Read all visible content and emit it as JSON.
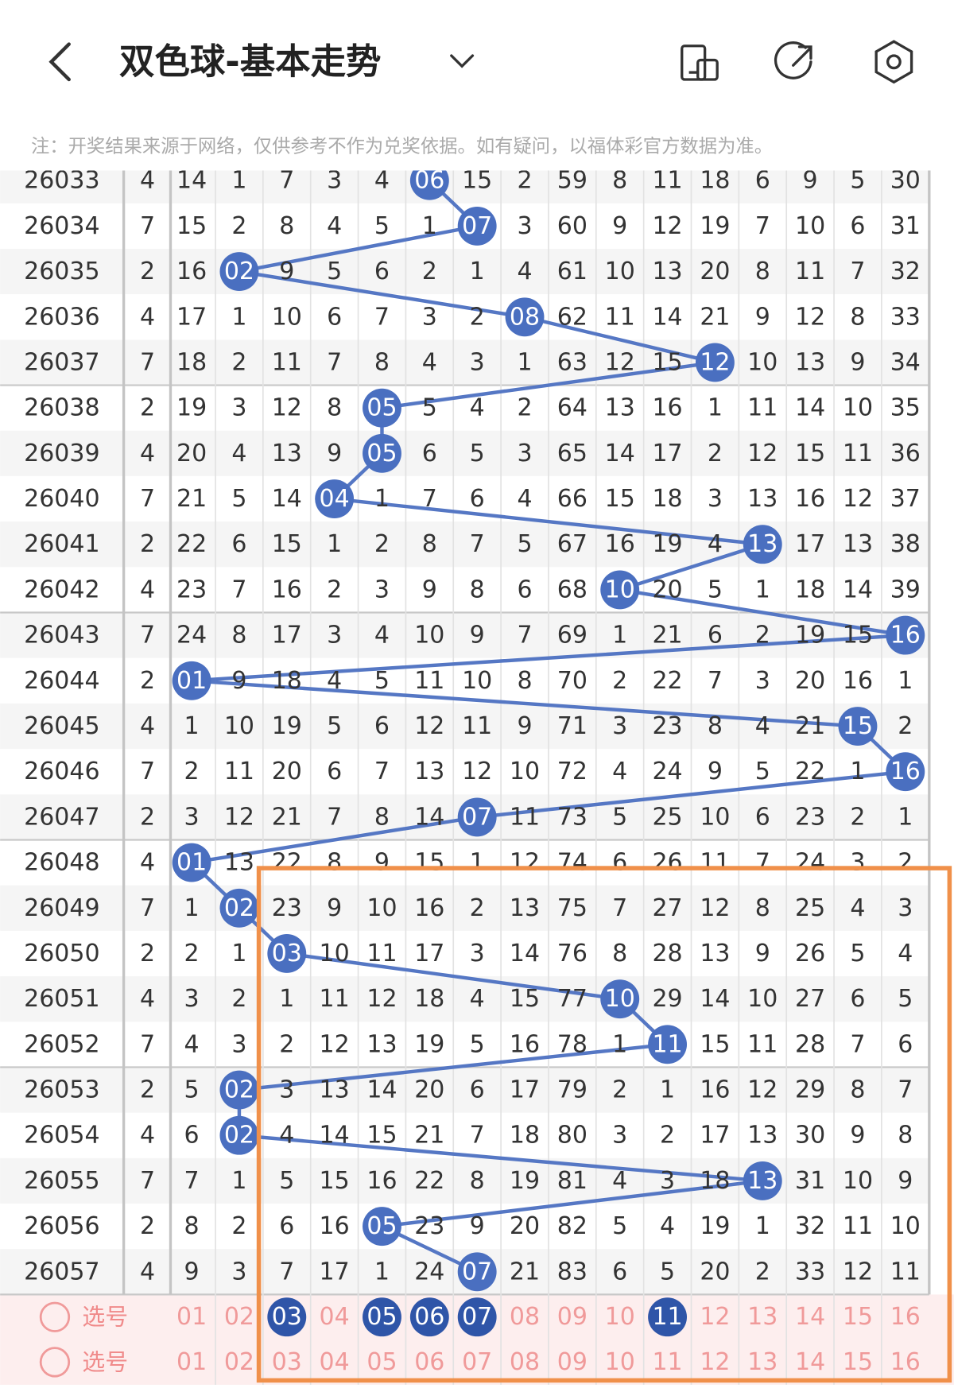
{
  "header": {
    "title": "双色球-基本走势",
    "note": "注：开奖结果来源于网络，仅供参考不作为兑奖依据。如有疑问，以福体彩官方数据为准。"
  },
  "table": {
    "rows": [
      {
        "issue": "26033",
        "span": 4,
        "cells": [
          14,
          1,
          7,
          3,
          4,
          "06",
          15,
          2,
          59,
          8,
          11,
          18,
          6,
          9,
          5,
          30
        ]
      },
      {
        "issue": "26034",
        "span": 7,
        "cells": [
          15,
          2,
          8,
          4,
          5,
          1,
          "07",
          3,
          60,
          9,
          12,
          19,
          7,
          10,
          6,
          31
        ]
      },
      {
        "issue": "26035",
        "span": 2,
        "cells": [
          16,
          "02",
          9,
          5,
          6,
          2,
          1,
          4,
          61,
          10,
          13,
          20,
          8,
          11,
          7,
          32
        ]
      },
      {
        "issue": "26036",
        "span": 4,
        "cells": [
          17,
          1,
          10,
          6,
          7,
          3,
          2,
          "08",
          62,
          11,
          14,
          21,
          9,
          12,
          8,
          33
        ]
      },
      {
        "issue": "26037",
        "span": 7,
        "cells": [
          18,
          2,
          11,
          7,
          8,
          4,
          3,
          1,
          63,
          12,
          15,
          "12",
          10,
          13,
          9,
          34
        ]
      },
      {
        "issue": "26038",
        "span": 2,
        "cells": [
          19,
          3,
          12,
          8,
          "05",
          5,
          4,
          2,
          64,
          13,
          16,
          1,
          11,
          14,
          10,
          35
        ]
      },
      {
        "issue": "26039",
        "span": 4,
        "cells": [
          20,
          4,
          13,
          9,
          "05",
          6,
          5,
          3,
          65,
          14,
          17,
          2,
          12,
          15,
          11,
          36
        ]
      },
      {
        "issue": "26040",
        "span": 7,
        "cells": [
          21,
          5,
          14,
          "04",
          1,
          7,
          6,
          4,
          66,
          15,
          18,
          3,
          13,
          16,
          12,
          37
        ]
      },
      {
        "issue": "26041",
        "span": 2,
        "cells": [
          22,
          6,
          15,
          1,
          2,
          8,
          7,
          5,
          67,
          16,
          19,
          4,
          "13",
          17,
          13,
          38
        ]
      },
      {
        "issue": "26042",
        "span": 4,
        "cells": [
          23,
          7,
          16,
          2,
          3,
          9,
          8,
          6,
          68,
          "10",
          20,
          5,
          1,
          18,
          14,
          39
        ]
      },
      {
        "issue": "26043",
        "span": 7,
        "cells": [
          24,
          8,
          17,
          3,
          4,
          10,
          9,
          7,
          69,
          1,
          21,
          6,
          2,
          19,
          15,
          "16"
        ]
      },
      {
        "issue": "26044",
        "span": 2,
        "cells": [
          "01",
          9,
          18,
          4,
          5,
          11,
          10,
          8,
          70,
          2,
          22,
          7,
          3,
          20,
          16,
          1
        ]
      },
      {
        "issue": "26045",
        "span": 4,
        "cells": [
          1,
          10,
          19,
          5,
          6,
          12,
          11,
          9,
          71,
          3,
          23,
          8,
          4,
          21,
          "15",
          2
        ]
      },
      {
        "issue": "26046",
        "span": 7,
        "cells": [
          2,
          11,
          20,
          6,
          7,
          13,
          12,
          10,
          72,
          4,
          24,
          9,
          5,
          22,
          1,
          "16"
        ]
      },
      {
        "issue": "26047",
        "span": 2,
        "cells": [
          3,
          12,
          21,
          7,
          8,
          14,
          "07",
          11,
          73,
          5,
          25,
          10,
          6,
          23,
          2,
          1
        ]
      },
      {
        "issue": "26048",
        "span": 4,
        "cells": [
          "01",
          13,
          22,
          8,
          9,
          15,
          1,
          12,
          74,
          6,
          26,
          11,
          7,
          24,
          3,
          2
        ]
      },
      {
        "issue": "26049",
        "span": 7,
        "cells": [
          1,
          "02",
          23,
          9,
          10,
          16,
          2,
          13,
          75,
          7,
          27,
          12,
          8,
          25,
          4,
          3
        ]
      },
      {
        "issue": "26050",
        "span": 2,
        "cells": [
          2,
          1,
          "03",
          10,
          11,
          17,
          3,
          14,
          76,
          8,
          28,
          13,
          9,
          26,
          5,
          4
        ]
      },
      {
        "issue": "26051",
        "span": 4,
        "cells": [
          3,
          2,
          1,
          11,
          12,
          18,
          4,
          15,
          77,
          "10",
          29,
          14,
          10,
          27,
          6,
          5
        ]
      },
      {
        "issue": "26052",
        "span": 7,
        "cells": [
          4,
          3,
          2,
          12,
          13,
          19,
          5,
          16,
          78,
          1,
          "11",
          15,
          11,
          28,
          7,
          6
        ]
      },
      {
        "issue": "26053",
        "span": 2,
        "cells": [
          5,
          "02",
          3,
          13,
          14,
          20,
          6,
          17,
          79,
          2,
          1,
          16,
          12,
          29,
          8,
          7
        ]
      },
      {
        "issue": "26054",
        "span": 4,
        "cells": [
          6,
          "02",
          4,
          14,
          15,
          21,
          7,
          18,
          80,
          3,
          2,
          17,
          13,
          30,
          9,
          8
        ]
      },
      {
        "issue": "26055",
        "span": 7,
        "cells": [
          7,
          1,
          5,
          15,
          16,
          22,
          8,
          19,
          81,
          4,
          3,
          18,
          "13",
          31,
          10,
          9
        ]
      },
      {
        "issue": "26056",
        "span": 2,
        "cells": [
          8,
          2,
          6,
          16,
          "05",
          23,
          9,
          20,
          82,
          5,
          4,
          19,
          1,
          32,
          11,
          10
        ]
      },
      {
        "issue": "26057",
        "span": 4,
        "cells": [
          9,
          3,
          7,
          17,
          1,
          24,
          "07",
          21,
          83,
          6,
          5,
          20,
          2,
          33,
          12,
          11
        ]
      }
    ]
  },
  "picker": {
    "rows": [
      {
        "label": "选号",
        "numbers": [
          "01",
          "02",
          "03",
          "04",
          "05",
          "06",
          "07",
          "08",
          "09",
          "10",
          "11",
          "12",
          "13",
          "14",
          "15",
          "16"
        ],
        "selected": [
          false,
          false,
          true,
          false,
          true,
          true,
          true,
          false,
          false,
          false,
          true,
          false,
          false,
          false,
          false,
          false
        ]
      },
      {
        "label": "选号",
        "numbers": [
          "01",
          "02",
          "03",
          "04",
          "05",
          "06",
          "07",
          "08",
          "09",
          "10",
          "11",
          "12",
          "13",
          "14",
          "15",
          "16"
        ],
        "selected": [
          false,
          false,
          false,
          false,
          false,
          false,
          false,
          false,
          false,
          false,
          false,
          false,
          false,
          false,
          false,
          false
        ]
      }
    ]
  }
}
